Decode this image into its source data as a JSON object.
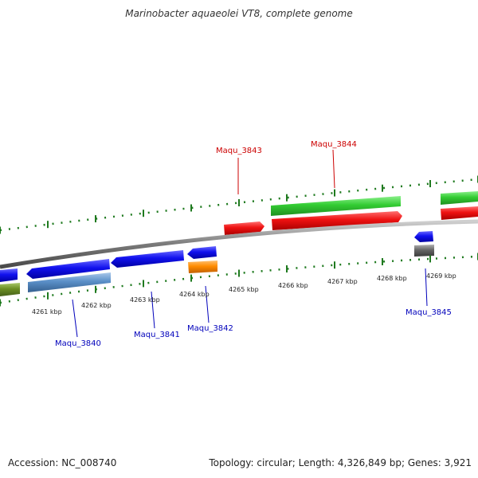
{
  "title": "Marinobacter aquaeolei VT8, complete genome",
  "footer": {
    "accession": "Accession: NC_008740",
    "summary": "Topology: circular; Length: 4,326,849 bp; Genes: 3,921"
  },
  "scale_labels": [
    {
      "text": "4261 kbp"
    },
    {
      "text": "4262 kbp"
    },
    {
      "text": "4263 kbp"
    },
    {
      "text": "4264 kbp"
    },
    {
      "text": "4265 kbp"
    },
    {
      "text": "4266 kbp"
    },
    {
      "text": "4267 kbp"
    },
    {
      "text": "4268 kbp"
    },
    {
      "text": "4269 kbp"
    }
  ],
  "gene_labels": [
    {
      "name": "gene-label-maqu-3843",
      "text": "Maqu_3843",
      "color": "#cc0000"
    },
    {
      "name": "gene-label-maqu-3844",
      "text": "Maqu_3844",
      "color": "#cc0000"
    },
    {
      "name": "gene-label-maqu-3840",
      "text": "Maqu_3840",
      "color": "#0000bb"
    },
    {
      "name": "gene-label-maqu-3841",
      "text": "Maqu_3841",
      "color": "#0000bb"
    },
    {
      "name": "gene-label-maqu-3842",
      "text": "Maqu_3842",
      "color": "#0000bb"
    },
    {
      "name": "gene-label-maqu-3845",
      "text": "Maqu_3845",
      "color": "#0000bb"
    }
  ],
  "colors": {
    "backbone": "#8a8a8a",
    "tick": "#1f7a1f",
    "forward_cds": "#ee1111",
    "forward_feature": "#33cc33",
    "reverse_cds": "#1111ee",
    "reverse_feature": "#5a8fc8",
    "orange_feature": "#ff8c00",
    "grey_feature": "#666666",
    "olive_feature": "#6b8e23"
  }
}
